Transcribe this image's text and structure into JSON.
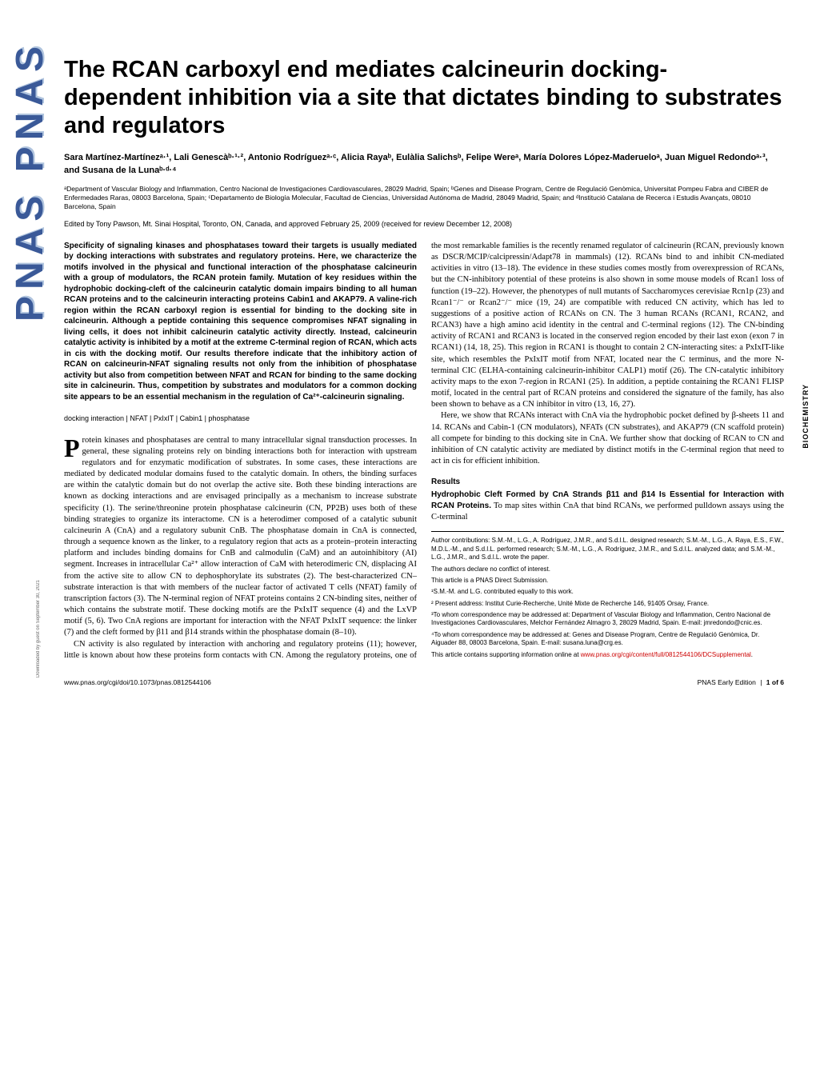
{
  "sidebar": {
    "pnas": "PNAS PNAS",
    "section": "BIOCHEMISTRY"
  },
  "download_note": "Downloaded by guest on September 30, 2021",
  "title": "The RCAN carboxyl end mediates calcineurin docking-dependent inhibition via a site that dictates binding to substrates and regulators",
  "authors": "Sara Martínez-Martínezᵃ·¹, Lali Genescàᵇ·¹·², Antonio Rodríguezᵃ·ᶜ, Alicia Rayaᵇ, Eulàlia Salichsᵇ, Felipe Wereᵃ, María Dolores López-Maderueloᵃ, Juan Miguel Redondoᵃ·³, and Susana de la Lunaᵇ·ᵈ·⁴",
  "affiliations": "ᵃDepartment of Vascular Biology and Inflammation, Centro Nacional de Investigaciones Cardiovasculares, 28029 Madrid, Spain; ᵇGenes and Disease Program, Centre de Regulació Genòmica, Universitat Pompeu Fabra and CIBER de Enfermedades Raras, 08003 Barcelona, Spain; ᶜDepartamento de Biología Molecular, Facultad de Ciencias, Universidad Autónoma de Madrid, 28049 Madrid, Spain; and ᵈInstitució Catalana de Recerca i Estudis Avançats, 08010 Barcelona, Spain",
  "edited_by": "Edited by Tony Pawson, Mt. Sinai Hospital, Toronto, ON, Canada, and approved February 25, 2009 (received for review December 12, 2008)",
  "abstract": "Specificity of signaling kinases and phosphatases toward their targets is usually mediated by docking interactions with substrates and regulatory proteins. Here, we characterize the motifs involved in the physical and functional interaction of the phosphatase calcineurin with a group of modulators, the RCAN protein family. Mutation of key residues within the hydrophobic docking-cleft of the calcineurin catalytic domain impairs binding to all human RCAN proteins and to the calcineurin interacting proteins Cabin1 and AKAP79. A valine-rich region within the RCAN carboxyl region is essential for binding to the docking site in calcineurin. Although a peptide containing this sequence compromises NFAT signaling in living cells, it does not inhibit calcineurin catalytic activity directly. Instead, calcineurin catalytic activity is inhibited by a motif at the extreme C-terminal region of RCAN, which acts in cis with the docking motif. Our results therefore indicate that the inhibitory action of RCAN on calcineurin-NFAT signaling results not only from the inhibition of phosphatase activity but also from competition between NFAT and RCAN for binding to the same docking site in calcineurin. Thus, competition by substrates and modulators for a common docking site appears to be an essential mechanism in the regulation of Ca²⁺-calcineurin signaling.",
  "keywords": "docking interaction | NFAT | PxIxIT | Cabin1 | phosphatase",
  "body_p1_first_letter": "P",
  "body_p1": "rotein kinases and phosphatases are central to many intracellular signal transduction processes. In general, these signaling proteins rely on binding interactions both for interaction with upstream regulators and for enzymatic modification of substrates. In some cases, these interactions are mediated by dedicated modular domains fused to the catalytic domain. In others, the binding surfaces are within the catalytic domain but do not overlap the active site. Both these binding interactions are known as docking interactions and are envisaged principally as a mechanism to increase substrate specificity (1). The serine/threonine protein phosphatase calcineurin (CN, PP2B) uses both of these binding strategies to organize its interactome. CN is a heterodimer composed of a catalytic subunit calcineurin A (CnA) and a regulatory subunit CnB. The phosphatase domain in CnA is connected, through a sequence known as the linker, to a regulatory region that acts as a protein–protein interacting platform and includes binding domains for CnB and calmodulin (CaM) and an autoinhibitory (AI) segment. Increases in intracellular Ca²⁺ allow interaction of CaM with heterodimeric CN, displacing AI from the active site to allow CN to dephosphorylate its substrates (2). The best-characterized CN–substrate interaction is that with members of the nuclear factor of activated T cells (NFAT) family of transcription factors (3). The N-terminal region of NFAT proteins contains 2 CN-binding sites, neither of which contains the substrate motif. These docking motifs are the PxIxIT sequence (4) and the LxVP motif (5, 6). Two CnA regions are important for interaction with the NFAT PxIxIT sequence: the linker (7) and the cleft formed by β11 and β14 strands within the phosphatase domain (8–10).",
  "body_p2": "CN activity is also regulated by interaction with anchoring and regulatory proteins (11); however, little is known about how these proteins form contacts with CN. Among the regulatory proteins, one of the most remarkable families is the recently renamed regulator of calcineurin (RCAN, previously known as DSCR/MCIP/calcipressin/Adapt78 in mammals) (12). RCANs bind to and inhibit CN-mediated activities in vitro (13–18). The evidence in these studies comes mostly from overexpression of RCANs, but the CN-inhibitory potential of these proteins is also shown in some mouse models of Rcan1 loss of function (19–22). However, the phenotypes of null mutants of Saccharomyces cerevisiae Rcn1p (23) and Rcan1⁻/⁻ or Rcan2⁻/⁻ mice (19, 24) are compatible with reduced CN activity, which has led to suggestions of a positive action of RCANs on CN. The 3 human RCANs (RCAN1, RCAN2, and RCAN3) have a high amino acid identity in the central and C-terminal regions (12). The CN-binding activity of RCAN1 and RCAN3 is located in the conserved region encoded by their last exon (exon 7 in RCAN1) (14, 18, 25). This region in RCAN1 is thought to contain 2 CN-interacting sites: a PxIxIT-like site, which resembles the PxIxIT motif from NFAT, located near the C terminus, and the more N-terminal CIC (ELHA-containing calcineurin-inhibitor CALP1) motif (26). The CN-catalytic inhibitory activity maps to the exon 7-region in RCAN1 (25). In addition, a peptide containing the RCAN1 FLISP motif, located in the central part of RCAN proteins and considered the signature of the family, has also been shown to behave as a CN inhibitor in vitro (13, 16, 27).",
  "body_p3": "Here, we show that RCANs interact with CnA via the hydrophobic pocket defined by β-sheets 11 and 14. RCANs and Cabin-1 (CN modulators), NFATs (CN substrates), and AKAP79 (CN scaffold protein) all compete for binding to this docking site in CnA. We further show that docking of RCAN to CN and inhibition of CN catalytic activity are mediated by distinct motifs in the C-terminal region that need to act in cis for efficient inhibition.",
  "section_heading": "Results",
  "run_in_heading": "Hydrophobic Cleft Formed by CnA Strands β11 and β14 Is Essential for Interaction with RCAN Proteins.",
  "body_p4": " To map sites within CnA that bind RCANs, we performed pulldown assays using the C-terminal",
  "footnotes": {
    "f1": "Author contributions: S.M.-M., L.G., A. Rodríguez, J.M.R., and S.d.l.L. designed research; S.M.-M., L.G., A. Raya, E.S., F.W., M.D.L.-M., and S.d.l.L. performed research; S.M.-M., L.G., A. Rodríguez, J.M.R., and S.d.l.L. analyzed data; and S.M.-M., L.G., J.M.R., and S.d.l.L. wrote the paper.",
    "f2": "The authors declare no conflict of interest.",
    "f3": "This article is a PNAS Direct Submission.",
    "f4": "¹S.M.-M. and L.G. contributed equally to this work.",
    "f5": "² Present address: Institut Curie-Recherche, Unité Mixte de Recherche 146, 91405 Orsay, France.",
    "f6": "³To whom correspondence may be addressed at: Department of Vascular Biology and Inflammation, Centro Nacional de Investigaciones Cardiovasculares, Melchor Fernández Almagro 3, 28029 Madrid, Spain. E-mail: jmredondo@cnic.es.",
    "f7": "⁴To whom correspondence may be addressed at: Genes and Disease Program, Centre de Regulació Genòmica, Dr. Aiguader 88, 08003 Barcelona, Spain. E-mail: susana.luna@crg.es.",
    "f8_prefix": "This article contains supporting information online at ",
    "f8_link": "www.pnas.org/cgi/content/full/0812544106/DCSupplemental",
    "f8_suffix": "."
  },
  "footer": {
    "left": "www.pnas.org/cgi/doi/10.1073/pnas.0812544106",
    "right_label": "PNAS Early Edition",
    "right_page": "1 of 6"
  },
  "colors": {
    "pnas_blue": "#3a5998",
    "link_red": "#cc0000",
    "text": "#000000",
    "background": "#ffffff"
  }
}
